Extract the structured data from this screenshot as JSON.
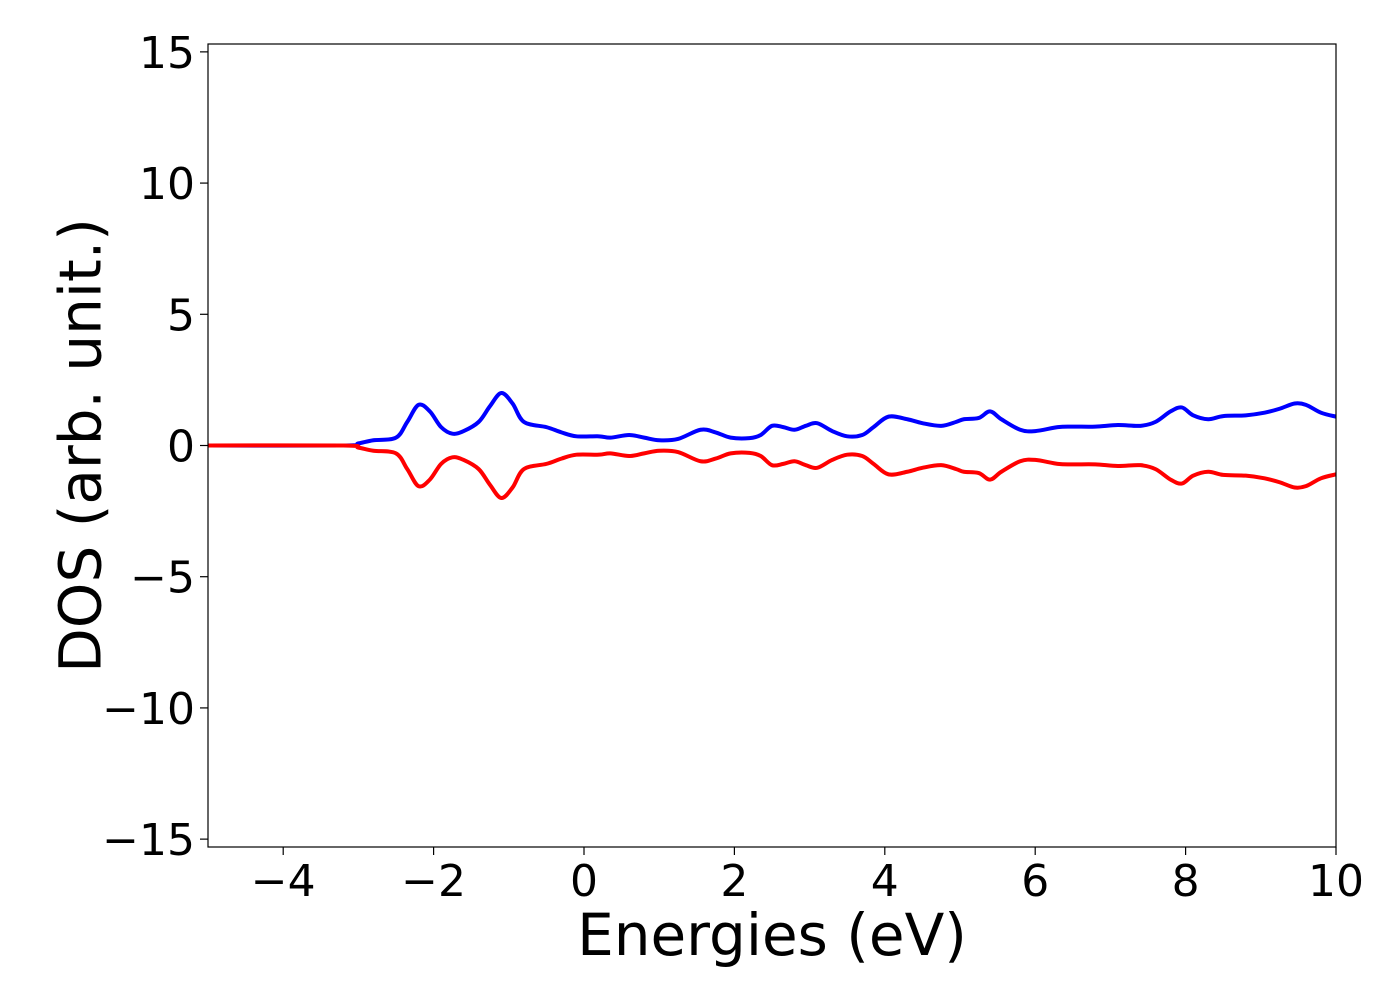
{
  "chart_data": {
    "type": "line",
    "title": "",
    "xlabel": "Energies (eV)",
    "ylabel": "DOS (arb. unit.)",
    "xlim": [
      -5,
      10
    ],
    "ylim": [
      -15.3,
      15.3
    ],
    "xticks": [
      -4,
      -2,
      0,
      2,
      4,
      6,
      8,
      10
    ],
    "xtick_labels": [
      "−4",
      "−2",
      "0",
      "2",
      "4",
      "6",
      "8",
      "10"
    ],
    "yticks": [
      15,
      10,
      5,
      0,
      -5,
      -10,
      -15
    ],
    "ytick_labels": [
      "15",
      "10",
      "5",
      "0",
      "−5",
      "−10",
      "−15"
    ],
    "grid": false,
    "legend": "none",
    "series": [
      {
        "color": "#0000ff",
        "x": [
          -5.0,
          -3.2,
          -3.0,
          -2.8,
          -2.5,
          -2.35,
          -2.2,
          -2.05,
          -1.9,
          -1.75,
          -1.6,
          -1.4,
          -1.25,
          -1.1,
          -0.95,
          -0.8,
          -0.5,
          -0.3,
          -0.1,
          0.2,
          0.35,
          0.6,
          0.8,
          1.0,
          1.25,
          1.55,
          1.75,
          1.95,
          2.2,
          2.35,
          2.5,
          2.65,
          2.8,
          2.95,
          3.1,
          3.3,
          3.5,
          3.7,
          3.85,
          4.05,
          4.3,
          4.5,
          4.75,
          4.95,
          5.05,
          5.25,
          5.4,
          5.55,
          5.8,
          6.0,
          6.3,
          6.5,
          6.8,
          7.1,
          7.4,
          7.6,
          7.8,
          7.95,
          8.1,
          8.3,
          8.5,
          8.8,
          9.05,
          9.25,
          9.45,
          9.6,
          9.8,
          10.0
        ],
        "y": [
          0.0,
          0.0,
          0.08,
          0.2,
          0.3,
          0.9,
          1.55,
          1.3,
          0.7,
          0.45,
          0.55,
          0.9,
          1.5,
          2.0,
          1.6,
          0.9,
          0.7,
          0.5,
          0.35,
          0.35,
          0.3,
          0.4,
          0.3,
          0.2,
          0.25,
          0.6,
          0.5,
          0.3,
          0.28,
          0.4,
          0.75,
          0.7,
          0.6,
          0.75,
          0.85,
          0.55,
          0.35,
          0.4,
          0.7,
          1.1,
          1.0,
          0.85,
          0.75,
          0.9,
          1.0,
          1.05,
          1.3,
          1.0,
          0.6,
          0.55,
          0.7,
          0.72,
          0.72,
          0.78,
          0.75,
          0.9,
          1.3,
          1.45,
          1.15,
          1.0,
          1.12,
          1.15,
          1.25,
          1.4,
          1.6,
          1.55,
          1.25,
          1.1
        ]
      },
      {
        "color": "#ff0000",
        "x": [
          -5.0,
          -3.2,
          -3.0,
          -2.8,
          -2.5,
          -2.35,
          -2.2,
          -2.05,
          -1.9,
          -1.75,
          -1.6,
          -1.4,
          -1.25,
          -1.1,
          -0.95,
          -0.8,
          -0.5,
          -0.3,
          -0.1,
          0.2,
          0.35,
          0.6,
          0.8,
          1.0,
          1.25,
          1.55,
          1.75,
          1.95,
          2.2,
          2.35,
          2.5,
          2.65,
          2.8,
          2.95,
          3.1,
          3.3,
          3.5,
          3.7,
          3.85,
          4.05,
          4.3,
          4.5,
          4.75,
          4.95,
          5.05,
          5.25,
          5.4,
          5.55,
          5.8,
          6.0,
          6.3,
          6.5,
          6.8,
          7.1,
          7.4,
          7.6,
          7.8,
          7.95,
          8.1,
          8.3,
          8.5,
          8.8,
          9.05,
          9.25,
          9.45,
          9.6,
          9.8,
          10.0
        ],
        "y": [
          0.0,
          0.0,
          -0.08,
          -0.2,
          -0.3,
          -0.9,
          -1.55,
          -1.3,
          -0.7,
          -0.45,
          -0.55,
          -0.9,
          -1.5,
          -2.0,
          -1.6,
          -0.9,
          -0.7,
          -0.5,
          -0.35,
          -0.35,
          -0.3,
          -0.4,
          -0.3,
          -0.2,
          -0.25,
          -0.6,
          -0.5,
          -0.3,
          -0.28,
          -0.4,
          -0.75,
          -0.7,
          -0.6,
          -0.75,
          -0.85,
          -0.55,
          -0.35,
          -0.4,
          -0.7,
          -1.1,
          -1.0,
          -0.85,
          -0.75,
          -0.9,
          -1.0,
          -1.05,
          -1.3,
          -1.0,
          -0.6,
          -0.55,
          -0.7,
          -0.72,
          -0.72,
          -0.78,
          -0.75,
          -0.9,
          -1.3,
          -1.45,
          -1.15,
          -1.0,
          -1.12,
          -1.15,
          -1.25,
          -1.4,
          -1.6,
          -1.55,
          -1.25,
          -1.1
        ]
      }
    ]
  }
}
